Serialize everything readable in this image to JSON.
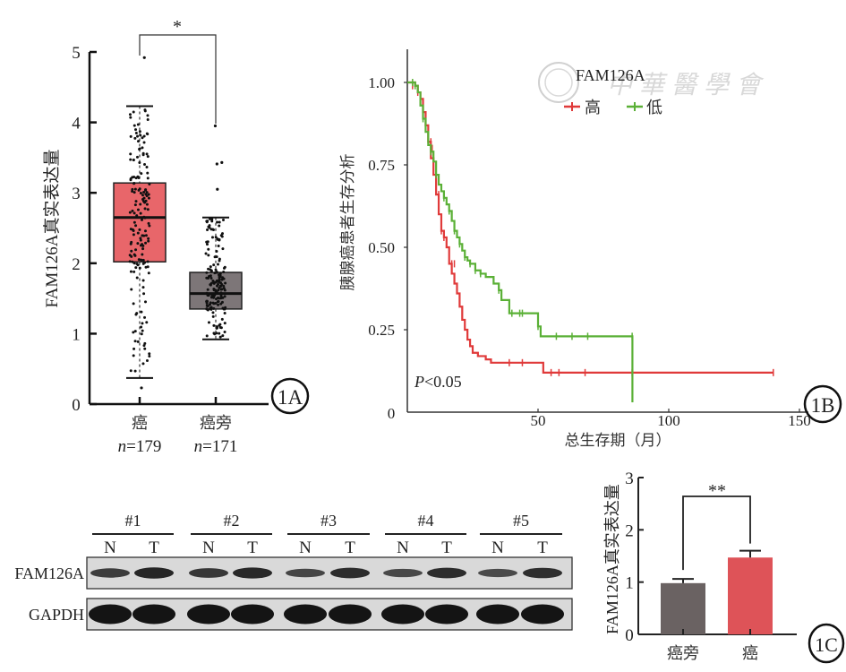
{
  "chart_data": [
    {
      "id": "1A",
      "type": "box",
      "panel_label": "1A",
      "ylabel": "FAM126A真实表达量",
      "ylim": [
        0,
        5
      ],
      "yticks": [
        "0",
        "1",
        "2",
        "3",
        "4",
        "5"
      ],
      "significance": "*",
      "categories": [
        {
          "label": "癌",
          "n_label": "n=179",
          "n_prefix": "n",
          "n_value": "=179",
          "color": "#e8666a",
          "q1": 2.02,
          "median": 2.65,
          "q3": 3.14,
          "whisker_low": 0.37,
          "whisker_high": 4.23,
          "outliers": [
            4.92,
            0.23
          ],
          "n": 179
        },
        {
          "label": "癌旁",
          "n_label": "n=171",
          "n_prefix": "n",
          "n_value": "=171",
          "color": "#7d7678",
          "q1": 1.35,
          "median": 1.57,
          "q3": 1.87,
          "whisker_low": 0.92,
          "whisker_high": 2.65,
          "outliers": [
            3.95,
            3.43,
            3.41,
            3.05
          ],
          "n": 171
        }
      ]
    },
    {
      "id": "1B",
      "type": "line",
      "subtype": "kaplan-meier",
      "panel_label": "1B",
      "ylabel": "胰腺癌患者生存分析",
      "xlabel": "总生存期（月）",
      "xlim": [
        0,
        150
      ],
      "ylim": [
        0,
        1.1
      ],
      "xticks": [
        "0",
        "50",
        "100",
        "150"
      ],
      "yticks": [
        "0.25",
        "0.50",
        "0.75",
        "1.00"
      ],
      "y_zero_label": "0",
      "legend_title": "FAM126A",
      "legend_position": "top-right",
      "annotation_p": "P",
      "annotation_rest": "<0.05",
      "series": [
        {
          "name": "高",
          "color": "#e03a3a",
          "x": [
            0,
            3,
            4,
            5,
            6,
            7,
            8,
            9,
            10,
            11,
            12,
            13,
            14,
            15,
            16,
            17,
            18,
            19,
            20,
            21,
            22,
            23,
            24,
            25,
            27,
            30,
            32,
            38,
            52,
            140
          ],
          "y": [
            1.0,
            0.99,
            0.97,
            0.95,
            0.91,
            0.87,
            0.82,
            0.77,
            0.72,
            0.66,
            0.6,
            0.55,
            0.53,
            0.5,
            0.45,
            0.42,
            0.39,
            0.36,
            0.32,
            0.28,
            0.25,
            0.22,
            0.2,
            0.18,
            0.17,
            0.16,
            0.15,
            0.15,
            0.12,
            0.12
          ],
          "censors_x": [
            2,
            4,
            7,
            9,
            9.5,
            11,
            12,
            13,
            14,
            17,
            18,
            39,
            44,
            55,
            58,
            68,
            86,
            140
          ],
          "censors_y": [
            0.99,
            0.97,
            0.87,
            0.82,
            0.8,
            0.74,
            0.66,
            0.55,
            0.53,
            0.45,
            0.45,
            0.15,
            0.15,
            0.12,
            0.12,
            0.12,
            0.12,
            0.12
          ]
        },
        {
          "name": "低",
          "color": "#5ab036",
          "x": [
            0,
            3,
            4,
            5,
            6,
            7,
            8,
            9,
            10,
            11,
            12,
            13,
            14,
            15,
            16,
            17,
            18,
            19,
            20,
            21,
            22,
            23,
            24,
            26,
            28,
            30,
            33,
            35,
            36,
            39,
            50,
            51,
            86,
            86.1
          ],
          "y": [
            1.0,
            0.99,
            0.97,
            0.93,
            0.89,
            0.85,
            0.81,
            0.79,
            0.76,
            0.72,
            0.69,
            0.67,
            0.65,
            0.63,
            0.61,
            0.58,
            0.55,
            0.53,
            0.51,
            0.49,
            0.47,
            0.46,
            0.45,
            0.43,
            0.42,
            0.41,
            0.39,
            0.37,
            0.34,
            0.3,
            0.26,
            0.23,
            0.23,
            0.03
          ],
          "censors_x": [
            2,
            3,
            6,
            9,
            11,
            14,
            16,
            18,
            20,
            22,
            24,
            26,
            28,
            35,
            40,
            43,
            44,
            50,
            57,
            63,
            69,
            86
          ],
          "censors_y": [
            1.0,
            0.99,
            0.89,
            0.79,
            0.72,
            0.65,
            0.61,
            0.55,
            0.51,
            0.47,
            0.45,
            0.43,
            0.42,
            0.37,
            0.3,
            0.3,
            0.3,
            0.26,
            0.23,
            0.23,
            0.23,
            0.23
          ]
        }
      ]
    },
    {
      "id": "1C",
      "type": "bar",
      "panel_label": "1C",
      "ylabel": "FAM126A真实表达量",
      "ylim": [
        0,
        3
      ],
      "yticks": [
        "0",
        "1",
        "2",
        "3"
      ],
      "categories": [
        "癌旁",
        "癌"
      ],
      "values": [
        0.98,
        1.47
      ],
      "errors": [
        0.08,
        0.13
      ],
      "colors": [
        "#6a6262",
        "#de5358"
      ],
      "significance": "**"
    }
  ],
  "western_blot": {
    "groups": [
      "#1",
      "#2",
      "#3",
      "#4",
      "#5"
    ],
    "lanes": [
      "N",
      "T",
      "N",
      "T",
      "N",
      "T",
      "N",
      "T",
      "N",
      "T"
    ],
    "rows": [
      {
        "label": "FAM126A",
        "intensity": [
          0.55,
          0.8,
          0.6,
          0.78,
          0.45,
          0.72,
          0.42,
          0.72,
          0.4,
          0.7
        ]
      },
      {
        "label": "GAPDH",
        "intensity": [
          1,
          1,
          1,
          1,
          1,
          1,
          1,
          1,
          1,
          1
        ]
      }
    ]
  },
  "watermark": {
    "text": "中華醫學會"
  }
}
